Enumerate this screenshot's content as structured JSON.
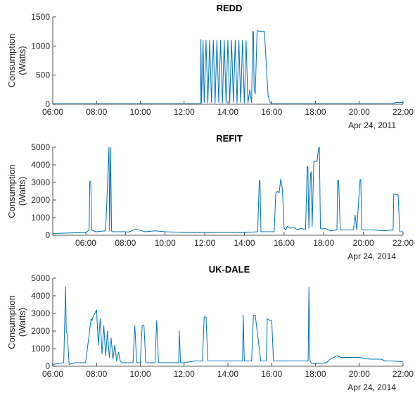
{
  "accent_color": "#0072BD",
  "chart_data": [
    {
      "type": "line",
      "title": "REDD",
      "ylabel": "Consumption\n(Watts)",
      "xlabel": "",
      "x_range": [
        "06:00",
        "22:00"
      ],
      "ylim": [
        0,
        1500
      ],
      "yticks": [
        0,
        500,
        1000,
        1500
      ],
      "xticks": [
        "06:00",
        "08:00",
        "10:00",
        "12:00",
        "14:00",
        "16:00",
        "18:00",
        "20:00",
        "22:00"
      ],
      "date_label": "Apr 24, 2011",
      "grid": false,
      "series": [
        {
          "x": [
            "06:00",
            "12:45",
            "12:46",
            "12:48",
            "12:52",
            "12:55",
            "13:00",
            "13:05",
            "13:10",
            "13:15",
            "13:20",
            "13:25",
            "13:30",
            "13:35",
            "13:40",
            "13:45",
            "13:50",
            "13:55",
            "14:00",
            "14:05",
            "14:10",
            "14:15",
            "14:20",
            "14:25",
            "14:30",
            "14:35",
            "14:40",
            "14:45",
            "14:50",
            "14:55",
            "15:00",
            "15:05",
            "15:08",
            "15:10",
            "15:12",
            "15:15",
            "15:20",
            "15:22",
            "15:30",
            "15:40",
            "15:50",
            "15:55",
            "16:00",
            "21:35",
            "21:40",
            "22:00"
          ],
          "y": [
            10,
            10,
            1110,
            20,
            1100,
            30,
            1100,
            20,
            1100,
            30,
            1100,
            20,
            1100,
            30,
            1100,
            20,
            1100,
            30,
            1100,
            20,
            1100,
            30,
            1100,
            20,
            1100,
            30,
            1100,
            20,
            1090,
            20,
            250,
            30,
            1250,
            1250,
            250,
            180,
            1260,
            1260,
            1250,
            1250,
            150,
            40,
            10,
            10,
            30,
            30
          ]
        }
      ]
    },
    {
      "type": "line",
      "title": "REFIT",
      "ylabel": "Consumption\n(Watts)",
      "xlabel": "",
      "x_range": [
        "04:20",
        "22:00"
      ],
      "ylim": [
        0,
        5000
      ],
      "yticks": [
        0,
        1000,
        2000,
        3000,
        4000,
        5000
      ],
      "xticks": [
        "06:00",
        "08:00",
        "10:00",
        "12:00",
        "14:00",
        "16:00",
        "18:00",
        "20:00",
        "22:00"
      ],
      "date_label": "Apr 24, 2014",
      "grid": false,
      "series": [
        {
          "x": [
            "04:20",
            "05:50",
            "06:00",
            "06:10",
            "06:12",
            "06:15",
            "06:18",
            "06:30",
            "07:00",
            "07:10",
            "07:12",
            "07:15",
            "07:18",
            "07:20",
            "08:00",
            "08:10",
            "08:30",
            "09:00",
            "09:30",
            "10:00",
            "11:00",
            "12:00",
            "13:00",
            "14:00",
            "14:40",
            "14:45",
            "14:47",
            "14:50",
            "15:00",
            "15:30",
            "15:35",
            "15:40",
            "15:45",
            "15:50",
            "15:55",
            "16:00",
            "16:05",
            "16:10",
            "16:20",
            "16:30",
            "16:40",
            "16:50",
            "17:00",
            "17:05",
            "17:10",
            "17:12",
            "17:15",
            "17:20",
            "17:22",
            "17:25",
            "17:30",
            "17:40",
            "17:45",
            "17:47",
            "17:50",
            "17:55",
            "18:00",
            "18:10",
            "18:20",
            "18:40",
            "18:42",
            "18:45",
            "18:50",
            "18:55",
            "19:00",
            "19:30",
            "19:35",
            "19:40",
            "19:50",
            "19:52",
            "19:55",
            "20:00",
            "20:30",
            "21:00",
            "21:30",
            "21:32",
            "21:35",
            "21:40",
            "21:45",
            "21:50",
            "22:00"
          ],
          "y": [
            100,
            150,
            150,
            300,
            3050,
            3050,
            300,
            200,
            250,
            5000,
            250,
            5000,
            250,
            200,
            200,
            180,
            350,
            200,
            250,
            200,
            150,
            150,
            150,
            150,
            200,
            3100,
            3100,
            200,
            200,
            200,
            2400,
            2500,
            2400,
            3200,
            2600,
            400,
            300,
            500,
            400,
            450,
            300,
            400,
            350,
            350,
            3900,
            3900,
            400,
            3500,
            3600,
            500,
            4200,
            4200,
            5000,
            5000,
            400,
            350,
            400,
            350,
            250,
            300,
            3100,
            3100,
            300,
            300,
            300,
            300,
            1150,
            300,
            3150,
            3150,
            300,
            300,
            300,
            250,
            300,
            2350,
            2350,
            2300,
            2300,
            200,
            200
          ]
        }
      ]
    },
    {
      "type": "line",
      "title": "UK-DALE",
      "ylabel": "Consumption\n(Watts)",
      "xlabel": "",
      "x_range": [
        "06:00",
        "22:00"
      ],
      "ylim": [
        0,
        5000
      ],
      "yticks": [
        0,
        1000,
        2000,
        3000,
        4000,
        5000
      ],
      "xticks": [
        "06:00",
        "08:00",
        "10:00",
        "12:00",
        "14:00",
        "16:00",
        "18:00",
        "20:00",
        "22:00"
      ],
      "date_label": "Apr 24, 2014",
      "grid": false,
      "series": [
        {
          "x": [
            "06:00",
            "06:30",
            "06:35",
            "06:37",
            "06:40",
            "06:45",
            "07:00",
            "07:30",
            "07:45",
            "07:48",
            "07:50",
            "08:00",
            "08:05",
            "08:10",
            "08:15",
            "08:20",
            "08:25",
            "08:30",
            "08:35",
            "08:40",
            "08:45",
            "08:50",
            "08:55",
            "09:00",
            "09:05",
            "09:10",
            "09:20",
            "09:30",
            "09:40",
            "09:45",
            "09:50",
            "10:00",
            "10:05",
            "10:10",
            "10:15",
            "10:20",
            "10:40",
            "10:45",
            "10:50",
            "11:00",
            "11:30",
            "11:45",
            "11:47",
            "11:50",
            "12:00",
            "12:30",
            "12:50",
            "12:55",
            "13:00",
            "13:05",
            "13:30",
            "14:00",
            "14:30",
            "14:40",
            "14:42",
            "14:45",
            "15:00",
            "15:05",
            "15:10",
            "15:15",
            "15:30",
            "15:45",
            "15:48",
            "15:55",
            "16:00",
            "16:05",
            "16:10",
            "16:30",
            "17:00",
            "17:30",
            "17:40",
            "17:42",
            "17:45",
            "17:50",
            "18:00",
            "18:30",
            "18:40",
            "19:00",
            "19:10",
            "19:30",
            "20:00",
            "20:30",
            "21:00",
            "21:10",
            "21:30",
            "22:00"
          ],
          "y": [
            100,
            200,
            4500,
            2000,
            1800,
            100,
            200,
            200,
            2700,
            2600,
            2800,
            3200,
            1200,
            2700,
            700,
            2300,
            600,
            2000,
            500,
            1600,
            400,
            1200,
            300,
            800,
            300,
            200,
            200,
            200,
            200,
            2300,
            200,
            200,
            2300,
            2300,
            200,
            200,
            200,
            2600,
            200,
            200,
            200,
            200,
            2000,
            200,
            200,
            300,
            300,
            2800,
            2800,
            300,
            300,
            300,
            300,
            300,
            2900,
            300,
            300,
            300,
            2900,
            2900,
            300,
            300,
            2700,
            2600,
            2600,
            300,
            300,
            300,
            300,
            300,
            300,
            4500,
            300,
            150,
            150,
            200,
            400,
            600,
            500,
            500,
            500,
            400,
            400,
            300,
            300,
            250
          ]
        }
      ]
    }
  ]
}
